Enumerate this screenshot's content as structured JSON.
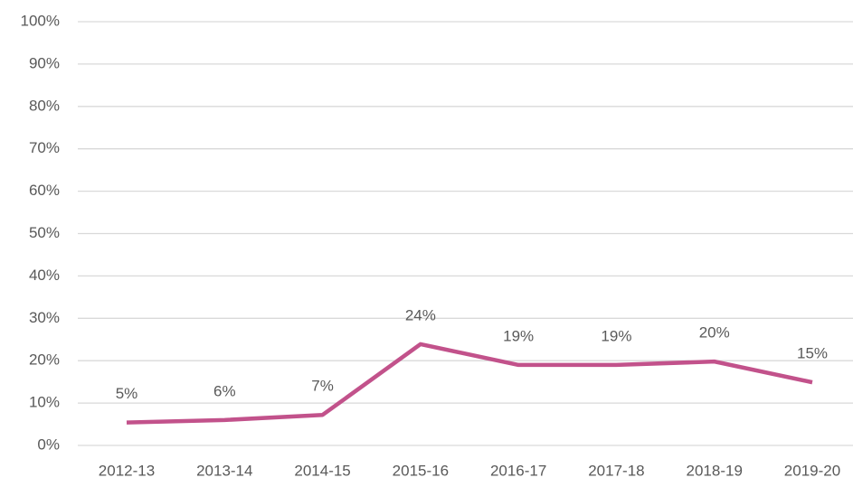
{
  "chart_data": {
    "type": "line",
    "categories": [
      "2012-13",
      "2013-14",
      "2014-15",
      "2015-16",
      "2016-17",
      "2017-18",
      "2018-19",
      "2019-20"
    ],
    "values": [
      5.4,
      6,
      7.2,
      23.9,
      19,
      19,
      19.8,
      14.9
    ],
    "value_labels": [
      "5%",
      "6%",
      "7%",
      "24%",
      "19%",
      "19%",
      "20%",
      "15%"
    ],
    "color": "#c2528b",
    "ylim": [
      0,
      100
    ],
    "yticks": [
      {
        "value": 0,
        "label": "0%"
      },
      {
        "value": 10,
        "label": "10%"
      },
      {
        "value": 20,
        "label": "20%"
      },
      {
        "value": 30,
        "label": "30%"
      },
      {
        "value": 40,
        "label": "40%"
      },
      {
        "value": 50,
        "label": "50%"
      },
      {
        "value": 60,
        "label": "60%"
      },
      {
        "value": 70,
        "label": "70%"
      },
      {
        "value": 80,
        "label": "80%"
      },
      {
        "value": 90,
        "label": "90%"
      },
      {
        "value": 100,
        "label": "100%"
      }
    ],
    "grid": true
  }
}
